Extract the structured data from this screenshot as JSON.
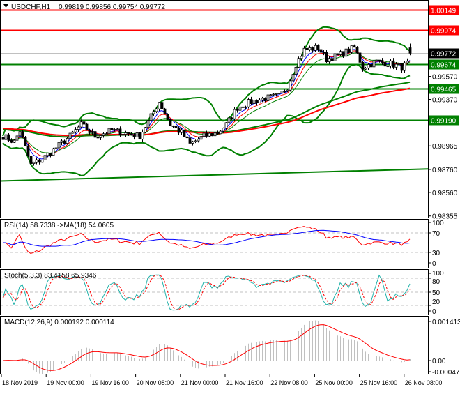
{
  "header": {
    "symbol_timeframe": "USDCHF,H1",
    "ohlc": "0.99819 0.99856 0.99754 0.99772"
  },
  "indicators": {
    "rsi_label": "RSI(14) 58.7338  ->MA(18) 54.0605",
    "stoch_label": "Stoch(5,3,3) 83.4158 65.9346",
    "macd_label": "MACD(12,26,9) 0.000192 0.000114"
  },
  "price_axis": {
    "ticks": [
      "0.99570",
      "0.99370",
      "0.98965",
      "0.98760",
      "0.98560",
      "0.98355"
    ],
    "tick_values": [
      0.9957,
      0.9937,
      0.98965,
      0.9876,
      0.9856,
      0.98355
    ]
  },
  "levels": [
    {
      "label": "1.00149",
      "value": 1.00149,
      "color": "#ff0000"
    },
    {
      "label": "0.99974",
      "value": 0.99974,
      "color": "#ff0000"
    },
    {
      "label": "0.99772",
      "value": 0.99772,
      "color": "#000000",
      "current": true
    },
    {
      "label": "0.99674",
      "value": 0.99674,
      "color": "#008000"
    },
    {
      "label": "0.99465",
      "value": 0.99465,
      "color": "#008000"
    },
    {
      "label": "0.99190",
      "value": 0.9919,
      "color": "#008000"
    }
  ],
  "rsi_axis": [
    "100",
    "70",
    "30",
    "0"
  ],
  "stoch_axis": [
    "100",
    "80",
    "50",
    "20",
    "0"
  ],
  "macd_axis": [
    "0.001413",
    "0.00",
    "-0.000472"
  ],
  "time_axis": [
    "18 Nov 2019",
    "19 Nov 00:00",
    "19 Nov 16:00",
    "20 Nov 08:00",
    "21 Nov 00:00",
    "21 Nov 16:00",
    "22 Nov 08:00",
    "25 Nov 00:00",
    "25 Nov 16:00",
    "26 Nov 08:00"
  ],
  "colors": {
    "bull": "#ffffff",
    "bear": "#000000",
    "bands": "#008000",
    "ma_slow": "#ff0000",
    "ma_slow2": "#008000",
    "rsi": "#ff0000",
    "rsi_ma": "#0000ff",
    "stoch_main": "#20b2aa",
    "stoch_signal": "#ff0000",
    "macd_hist": "#c0c0c0",
    "macd_signal": "#ff0000"
  },
  "chart_data": {
    "type": "candlestick",
    "symbol": "USDCHF",
    "timeframe": "H1",
    "ylim": [
      0.98355,
      1.0018
    ],
    "close_path": [
      [
        "2019-11-18 08:00",
        0.9905
      ],
      [
        "2019-11-18 12:00",
        0.99
      ],
      [
        "2019-11-18 14:00",
        0.991
      ],
      [
        "2019-11-18 18:00",
        0.988
      ],
      [
        "2019-11-18 22:00",
        0.9885
      ],
      [
        "2019-11-19 03:00",
        0.9895
      ],
      [
        "2019-11-19 08:00",
        0.9905
      ],
      [
        "2019-11-19 12:00",
        0.9915
      ],
      [
        "2019-11-19 17:00",
        0.9905
      ],
      [
        "2019-11-19 23:00",
        0.991
      ],
      [
        "2019-11-20 09:00",
        0.9905
      ],
      [
        "2019-11-20 13:00",
        0.9922
      ],
      [
        "2019-11-20 16:00",
        0.9935
      ],
      [
        "2019-11-20 20:00",
        0.9915
      ],
      [
        "2019-11-21 00:00",
        0.9908
      ],
      [
        "2019-11-21 03:00",
        0.9898
      ],
      [
        "2019-11-21 08:00",
        0.9905
      ],
      [
        "2019-11-21 13:00",
        0.9908
      ],
      [
        "2019-11-21 16:00",
        0.9915
      ],
      [
        "2019-11-21 20:00",
        0.993
      ],
      [
        "2019-11-22 01:00",
        0.9935
      ],
      [
        "2019-11-22 06:00",
        0.9938
      ],
      [
        "2019-11-22 11:00",
        0.994
      ],
      [
        "2019-11-22 14:00",
        0.9948
      ],
      [
        "2019-11-22 17:00",
        0.9968
      ],
      [
        "2019-11-22 20:00",
        0.998
      ],
      [
        "2019-11-25 01:00",
        0.9982
      ],
      [
        "2019-11-25 04:00",
        0.9972
      ],
      [
        "2019-11-25 08:00",
        0.9975
      ],
      [
        "2019-11-25 14:00",
        0.9982
      ],
      [
        "2019-11-25 17:00",
        0.9965
      ],
      [
        "2019-11-25 22:00",
        0.997
      ],
      [
        "2019-11-26 03:00",
        0.9968
      ],
      [
        "2019-11-26 07:00",
        0.9965
      ],
      [
        "2019-11-26 09:00",
        0.9968
      ]
    ],
    "last_bar": {
      "open": 0.99819,
      "high": 0.99856,
      "low": 0.99754,
      "close": 0.99772
    },
    "lower_trend_line": [
      0.9866,
      0.98765
    ]
  }
}
